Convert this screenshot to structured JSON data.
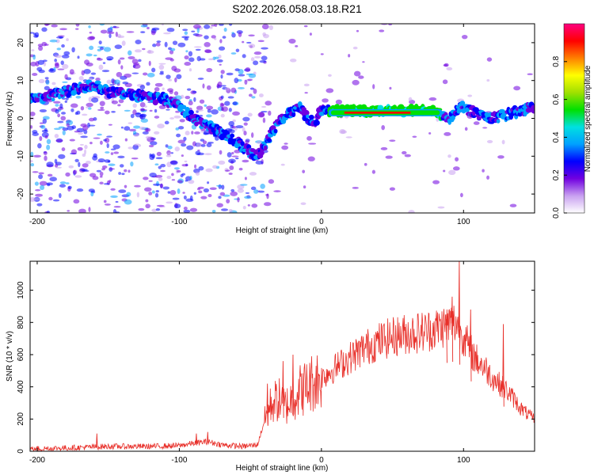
{
  "title": "S202.2026.058.03.18.R21",
  "chart_data": [
    {
      "type": "heatmap",
      "name": "spectrogram",
      "xlabel": "Height of straight line (km)",
      "ylabel": "Frequency (Hz)",
      "xlim": [
        -205,
        150
      ],
      "ylim": [
        -25,
        25
      ],
      "xticks": [
        -200,
        -100,
        0,
        100
      ],
      "yticks": [
        -20,
        -10,
        0,
        10,
        20
      ],
      "ridge": {
        "x": [
          -200,
          -180,
          -160,
          -150,
          -130,
          -110,
          -100,
          -90,
          -80,
          -70,
          -60,
          -50,
          -45,
          -40,
          -35,
          -30,
          -25,
          -20,
          -15,
          -10,
          -5,
          0,
          10,
          30,
          60,
          80,
          90,
          95,
          100,
          110,
          120,
          130,
          140,
          150
        ],
        "frequency_hz": [
          5,
          7,
          9,
          7,
          6,
          5,
          3,
          0,
          -2,
          -4,
          -6,
          -9,
          -10,
          -7,
          -4,
          -1,
          1,
          2,
          3,
          0,
          -1,
          2,
          2,
          2,
          2,
          2,
          0,
          2,
          3,
          1,
          0,
          1,
          2,
          3
        ]
      },
      "plateau": {
        "x": [
          5,
          85
        ],
        "frequency_hz": 1.5
      },
      "colorbar": {
        "label": "Normalized spectral amplitude",
        "range": [
          0,
          1
        ],
        "ticks": [
          "0.0",
          "0.2",
          "0.4",
          "0.6",
          "0.8"
        ],
        "colors": [
          "#ffffff",
          "#c8a0f0",
          "#7000e0",
          "#0000ff",
          "#00a0ff",
          "#00e0e0",
          "#00e000",
          "#a0e000",
          "#ffff00",
          "#ff8000",
          "#ff0000",
          "#ff0080"
        ]
      }
    },
    {
      "type": "line",
      "name": "snr",
      "xlabel": "Height of straight line (km)",
      "ylabel": "SNR (10 * v/v)",
      "xlim": [
        -205,
        150
      ],
      "ylim": [
        0,
        1180
      ],
      "xticks": [
        -200,
        -100,
        0,
        100
      ],
      "yticks": [
        0,
        200,
        400,
        600,
        800,
        1000
      ],
      "color": "#e8302a",
      "envelope": {
        "x": [
          -205,
          -180,
          -150,
          -120,
          -100,
          -90,
          -80,
          -70,
          -55,
          -45,
          -40,
          -35,
          -30,
          -25,
          -20,
          -15,
          -10,
          -5,
          0,
          10,
          20,
          30,
          40,
          50,
          60,
          70,
          80,
          90,
          95,
          100,
          105,
          110,
          115,
          120,
          125,
          130,
          135,
          140,
          145,
          150
        ],
        "snr": [
          15,
          20,
          30,
          30,
          35,
          50,
          60,
          40,
          30,
          40,
          190,
          300,
          320,
          280,
          330,
          380,
          400,
          440,
          460,
          520,
          580,
          640,
          680,
          710,
          730,
          740,
          760,
          790,
          800,
          720,
          620,
          560,
          520,
          460,
          420,
          380,
          330,
          270,
          230,
          200
        ]
      },
      "spikes": [
        {
          "x": -158,
          "snr": 110
        },
        {
          "x": -88,
          "snr": 110
        },
        {
          "x": -80,
          "snr": 120
        },
        {
          "x": -38,
          "snr": 420
        },
        {
          "x": -27,
          "snr": 560
        },
        {
          "x": -20,
          "snr": 600
        },
        {
          "x": 97,
          "snr": 1180
        },
        {
          "x": 92,
          "snr": 960
        },
        {
          "x": 88,
          "snr": 820
        },
        {
          "x": 105,
          "snr": 880
        },
        {
          "x": 128,
          "snr": 790
        }
      ]
    }
  ]
}
